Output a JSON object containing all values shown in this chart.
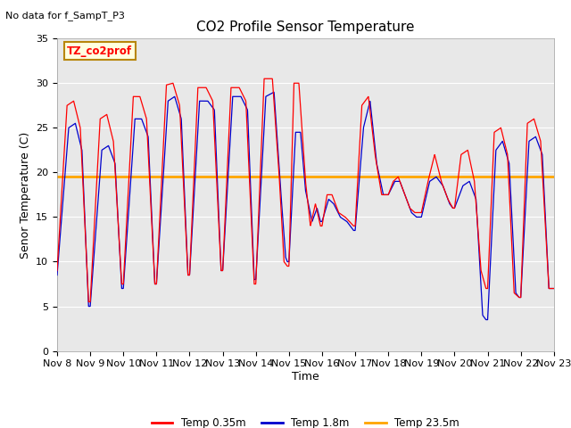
{
  "title": "CO2 Profile Sensor Temperature",
  "subtitle": "No data for f_SampT_P3",
  "ylabel": "Senor Temperature (C)",
  "xlabel": "Time",
  "annotation_label": "TZ_co2prof",
  "ylim": [
    0,
    35
  ],
  "yticks": [
    0,
    5,
    10,
    15,
    20,
    25,
    30,
    35
  ],
  "xtick_labels": [
    "Nov 8",
    "Nov 9",
    "Nov 10",
    "Nov 11",
    "Nov 12",
    "Nov 13",
    "Nov 14",
    "Nov 15",
    "Nov 16",
    "Nov 17",
    "Nov 18",
    "Nov 19",
    "Nov 20",
    "Nov 21",
    "Nov 22",
    "Nov 23"
  ],
  "constant_line_value": 19.5,
  "line_red_color": "#FF0000",
  "line_blue_color": "#0000CC",
  "line_orange_color": "#FFA500",
  "legend_labels": [
    "Temp 0.35m",
    "Temp 1.8m",
    "Temp 23.5m"
  ],
  "bg_color": "#E8E8E8",
  "title_fontsize": 11,
  "axis_fontsize": 9,
  "tick_fontsize": 8
}
